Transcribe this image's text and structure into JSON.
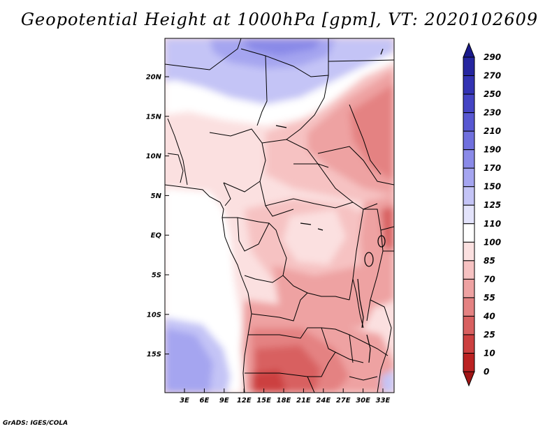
{
  "title": "Geopotential Height at 1000hPa [gpm], VT: 2020102609",
  "credit": "GrADS: IGES/COLA",
  "latitude_labels": [
    "20N",
    "15N",
    "10N",
    "5N",
    "EQ",
    "5S",
    "10S",
    "15S"
  ],
  "longitude_labels": [
    "3E",
    "6E",
    "9E",
    "12E",
    "15E",
    "18E",
    "21E",
    "24E",
    "27E",
    "30E",
    "33E"
  ],
  "colorbar": {
    "labels": [
      "290",
      "270",
      "250",
      "230",
      "210",
      "190",
      "170",
      "150",
      "125",
      "110",
      "100",
      "85",
      "70",
      "55",
      "40",
      "25",
      "10",
      "0"
    ],
    "colors": [
      "#1a1a8c",
      "#2626a0",
      "#3333b3",
      "#4444c4",
      "#5858d2",
      "#7070de",
      "#8a8ae8",
      "#a5a5f0",
      "#c4c4f6",
      "#e3e3fb",
      "#ffffff",
      "#fbe0e0",
      "#f6c2c2",
      "#eea2a2",
      "#e48282",
      "#d86060",
      "#cc4040",
      "#bb2222",
      "#a01515"
    ]
  }
}
